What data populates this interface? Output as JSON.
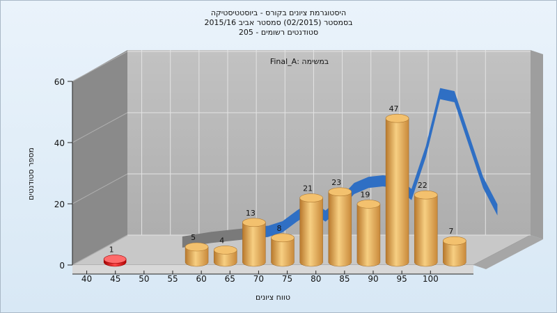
{
  "title_lines": [
    "היסטוגרמת ציונים בקורס - ביוסטטיסטיקה",
    "בסמסטר  (02/2015)  סמסטר אביב 2015/16",
    "סטודנטים רשומים - 205"
  ],
  "colors": {
    "bar": "#e0a24a",
    "bar_low": "#e01010",
    "curve": "#2f6fc4",
    "curve_gray": "#7a7a7a",
    "back_wall": "#b8b8b8",
    "side_wall": "#8c8c8c",
    "floor": "#c4c4c4"
  },
  "chart_data": {
    "type": "bar",
    "title": "היסטוגרמת ציונים בקורס - ביוסטטיסטיקה",
    "annotation": "במשימה :Final_A",
    "xlabel": "טווח ציונים",
    "ylabel": "מספר סטודנטים",
    "ylim": [
      0,
      60
    ],
    "yticks": [
      0,
      20,
      40,
      60
    ],
    "xticks": [
      "40",
      "45",
      "50",
      "55",
      "60",
      "65",
      "70",
      "75",
      "80",
      "85",
      "90",
      "95",
      "100"
    ],
    "grid": true,
    "bars": [
      {
        "x": 42.5,
        "value": 1
      },
      {
        "x": 57.5,
        "value": 5
      },
      {
        "x": 62.5,
        "value": 4
      },
      {
        "x": 67.5,
        "value": 13
      },
      {
        "x": 72.5,
        "value": 8
      },
      {
        "x": 77.5,
        "value": 21
      },
      {
        "x": 82.5,
        "value": 23
      },
      {
        "x": 87.5,
        "value": 19
      },
      {
        "x": 92.5,
        "value": 47
      },
      {
        "x": 97.5,
        "value": 22
      },
      {
        "x": 102.5,
        "value": 7
      }
    ],
    "curve": {
      "x": [
        50,
        55,
        60,
        62.5,
        65,
        67.5,
        70,
        72.5,
        75,
        77.5,
        80,
        82.5,
        85,
        87.5,
        90,
        92.5,
        95,
        97.5,
        100,
        102.5,
        105
      ],
      "y": [
        2.5,
        4,
        5,
        5.5,
        6,
        7.5,
        11,
        14,
        11,
        15,
        20,
        22,
        22.5,
        22,
        18,
        32,
        51,
        50,
        36,
        22,
        13
      ]
    }
  }
}
